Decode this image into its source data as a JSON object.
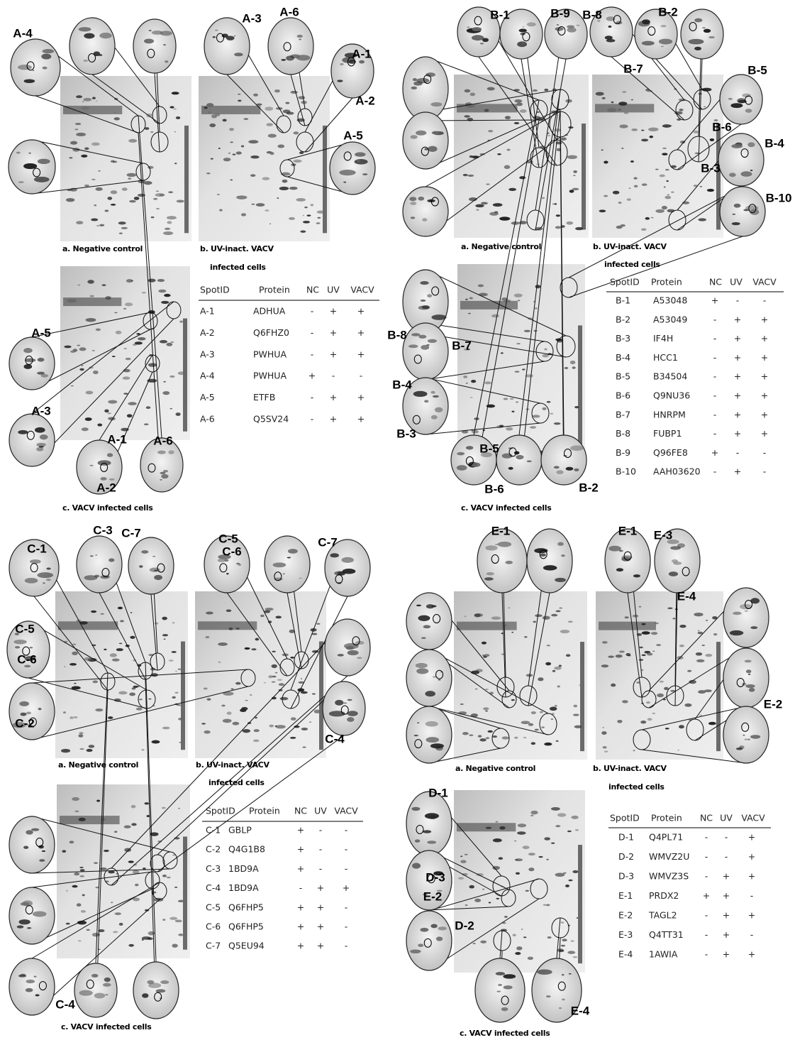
{
  "panels": [
    {
      "spot_labels": [
        "A-4",
        "A-3",
        "A-6",
        "A-1",
        "A-2",
        "A-5",
        "A-5",
        "A-3",
        "A-1",
        "A-6",
        "A-2"
      ],
      "captions": [
        "a. Negative control",
        "b. UV-inact. VACV",
        "infected cells",
        "c. VACV infected cells"
      ],
      "table": {
        "header": [
          "SpotID",
          "Protein",
          "NC",
          "UV",
          "VACV"
        ],
        "rows": [
          [
            "A-1",
            "ADHUA",
            "-",
            "+",
            "+"
          ],
          [
            "A-2",
            "Q6FHZ0",
            "-",
            "+",
            "+"
          ],
          [
            "A-3",
            "PWHUA",
            "-",
            "+",
            "+"
          ],
          [
            "A-4",
            "PWHUA",
            "+",
            "-",
            "-"
          ],
          [
            "A-5",
            "ETFB",
            "-",
            "+",
            "+"
          ],
          [
            "A-6",
            "Q5SV24",
            "-",
            "+",
            "+"
          ]
        ]
      }
    },
    {
      "spot_labels": [
        "B-1",
        "B-9",
        "B-8",
        "B-2",
        "B-7",
        "B-5",
        "B-6",
        "B-4",
        "B-3",
        "B-10",
        "B-8",
        "B-7",
        "B-4",
        "B-3",
        "B-5",
        "B-6",
        "B-2"
      ],
      "captions": [
        "a. Negative control",
        "b. UV-inact. VACV",
        "infected cells",
        "c. VACV infected cells"
      ],
      "table": {
        "header": [
          "SpotID",
          "Protein",
          "NC",
          "UV",
          "VACV"
        ],
        "rows": [
          [
            "B-1",
            "A53048",
            "+",
            "-",
            "-"
          ],
          [
            "B-2",
            "A53049",
            "-",
            "+",
            "+"
          ],
          [
            "B-3",
            "IF4H",
            "-",
            "+",
            "+"
          ],
          [
            "B-4",
            "HCC1",
            "-",
            "+",
            "+"
          ],
          [
            "B-5",
            "B34504",
            "-",
            "+",
            "+"
          ],
          [
            "B-6",
            "Q9NU36",
            "-",
            "+",
            "+"
          ],
          [
            "B-7",
            "HNRPM",
            "-",
            "+",
            "+"
          ],
          [
            "B-8",
            "FUBP1",
            "-",
            "+",
            "+"
          ],
          [
            "B-9",
            "Q96FE8",
            "+",
            "-",
            "-"
          ],
          [
            "B-10",
            "AAH03620",
            "-",
            "+",
            "-"
          ]
        ]
      }
    },
    {
      "spot_labels": [
        "C-1",
        "C-3",
        "C-7",
        "C-5",
        "C-6",
        "C-2",
        "C-5",
        "C-6",
        "C-7",
        "C-4",
        "C-4"
      ],
      "captions": [
        "a. Negative control",
        "b. UV-inact. VACV",
        "infected cells",
        "c. VACV infected cells"
      ],
      "table": {
        "header": [
          "SpotID",
          "Protein",
          "NC",
          "UV",
          "VACV"
        ],
        "rows": [
          [
            "C-1",
            "GBLP",
            "+",
            "-",
            "-"
          ],
          [
            "C-2",
            "Q4G1B8",
            "+",
            "-",
            "-"
          ],
          [
            "C-3",
            "1BD9A",
            "+",
            "-",
            "-"
          ],
          [
            "C-4",
            "1BD9A",
            "-",
            "+",
            "+"
          ],
          [
            "C-5",
            "Q6FHP5",
            "+",
            "+",
            "-"
          ],
          [
            "C-6",
            "Q6FHP5",
            "+",
            "+",
            "-"
          ],
          [
            "C-7",
            "Q5EU94",
            "+",
            "+",
            "-"
          ]
        ]
      }
    },
    {
      "spot_labels": [
        "E-1",
        "E-1",
        "E-3",
        "E-4",
        "E-2",
        "D-1",
        "D-3",
        "E-2",
        "D-2",
        "E-4"
      ],
      "captions": [
        "a. Negative control",
        "b. UV-inact. VACV",
        "infected cells",
        "c. VACV infected cells"
      ],
      "table": {
        "header": [
          "SpotID",
          "Protein",
          "NC",
          "UV",
          "VACV"
        ],
        "rows": [
          [
            "D-1",
            "Q4PL71",
            "-",
            "-",
            "+"
          ],
          [
            "D-2",
            "WMVZ2U",
            "-",
            "-",
            "+"
          ],
          [
            "D-3",
            "WMVZ3S",
            "-",
            "+",
            "+"
          ],
          [
            "E-1",
            "PRDX2",
            "+",
            "+",
            "-"
          ],
          [
            "E-2",
            "TAGL2",
            "-",
            "+",
            "+"
          ],
          [
            "E-3",
            "Q4TT31",
            "-",
            "+",
            "-"
          ],
          [
            "E-4",
            "1AWIA",
            "-",
            "+",
            "+"
          ]
        ]
      }
    }
  ]
}
